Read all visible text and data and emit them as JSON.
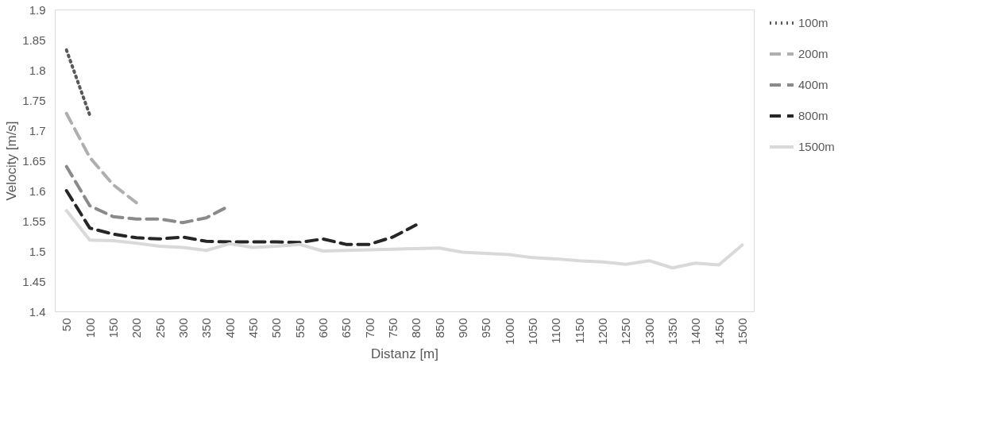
{
  "chart_data": {
    "type": "line",
    "xlabel": "Distanz [m]",
    "ylabel": "Velocity [m/s]",
    "categories": [
      "50",
      "100",
      "150",
      "200",
      "250",
      "300",
      "350",
      "400",
      "450",
      "500",
      "550",
      "600",
      "650",
      "700",
      "750",
      "800",
      "850",
      "900",
      "950",
      "1000",
      "1050",
      "1100",
      "1150",
      "1200",
      "1250",
      "1300",
      "1350",
      "1400",
      "1450",
      "1500"
    ],
    "ylim": [
      1.4,
      1.9
    ],
    "yticks": [
      1.4,
      1.45,
      1.5,
      1.55,
      1.6,
      1.65,
      1.7,
      1.75,
      1.8,
      1.85,
      1.9
    ],
    "grid": false,
    "legend": "right",
    "series": [
      {
        "name": "100m",
        "color": "#595959",
        "line_style": "dotted",
        "values": [
          1.833,
          1.725,
          null,
          null,
          null,
          null,
          null,
          null,
          null,
          null,
          null,
          null,
          null,
          null,
          null,
          null,
          null,
          null,
          null,
          null,
          null,
          null,
          null,
          null,
          null,
          null,
          null,
          null,
          null,
          null
        ]
      },
      {
        "name": "200m",
        "color": "#afafaf",
        "line_style": "dashed",
        "values": [
          1.728,
          1.655,
          1.61,
          1.58,
          null,
          null,
          null,
          null,
          null,
          null,
          null,
          null,
          null,
          null,
          null,
          null,
          null,
          null,
          null,
          null,
          null,
          null,
          null,
          null,
          null,
          null,
          null,
          null,
          null,
          null
        ]
      },
      {
        "name": "400m",
        "color": "#8a8a8a",
        "line_style": "dashed",
        "values": [
          1.64,
          1.575,
          1.557,
          1.553,
          1.553,
          1.547,
          1.555,
          1.575,
          null,
          null,
          null,
          null,
          null,
          null,
          null,
          null,
          null,
          null,
          null,
          null,
          null,
          null,
          null,
          null,
          null,
          null,
          null,
          null,
          null,
          null
        ]
      },
      {
        "name": "800m",
        "color": "#262626",
        "line_style": "dashed",
        "values": [
          1.6,
          1.538,
          1.528,
          1.522,
          1.52,
          1.523,
          1.516,
          1.515,
          1.515,
          1.515,
          1.514,
          1.52,
          1.511,
          1.511,
          1.523,
          1.543,
          null,
          null,
          null,
          null,
          null,
          null,
          null,
          null,
          null,
          null,
          null,
          null,
          null,
          null
        ]
      },
      {
        "name": "1500m",
        "color": "#d9d9d9",
        "line_style": "solid",
        "values": [
          1.567,
          1.518,
          1.517,
          1.513,
          1.508,
          1.506,
          1.501,
          1.512,
          1.506,
          1.508,
          1.511,
          1.5,
          1.501,
          1.502,
          1.503,
          1.504,
          1.505,
          1.498,
          1.496,
          1.494,
          1.489,
          1.487,
          1.484,
          1.482,
          1.478,
          1.484,
          1.472,
          1.48,
          1.477,
          1.51
        ]
      }
    ]
  }
}
